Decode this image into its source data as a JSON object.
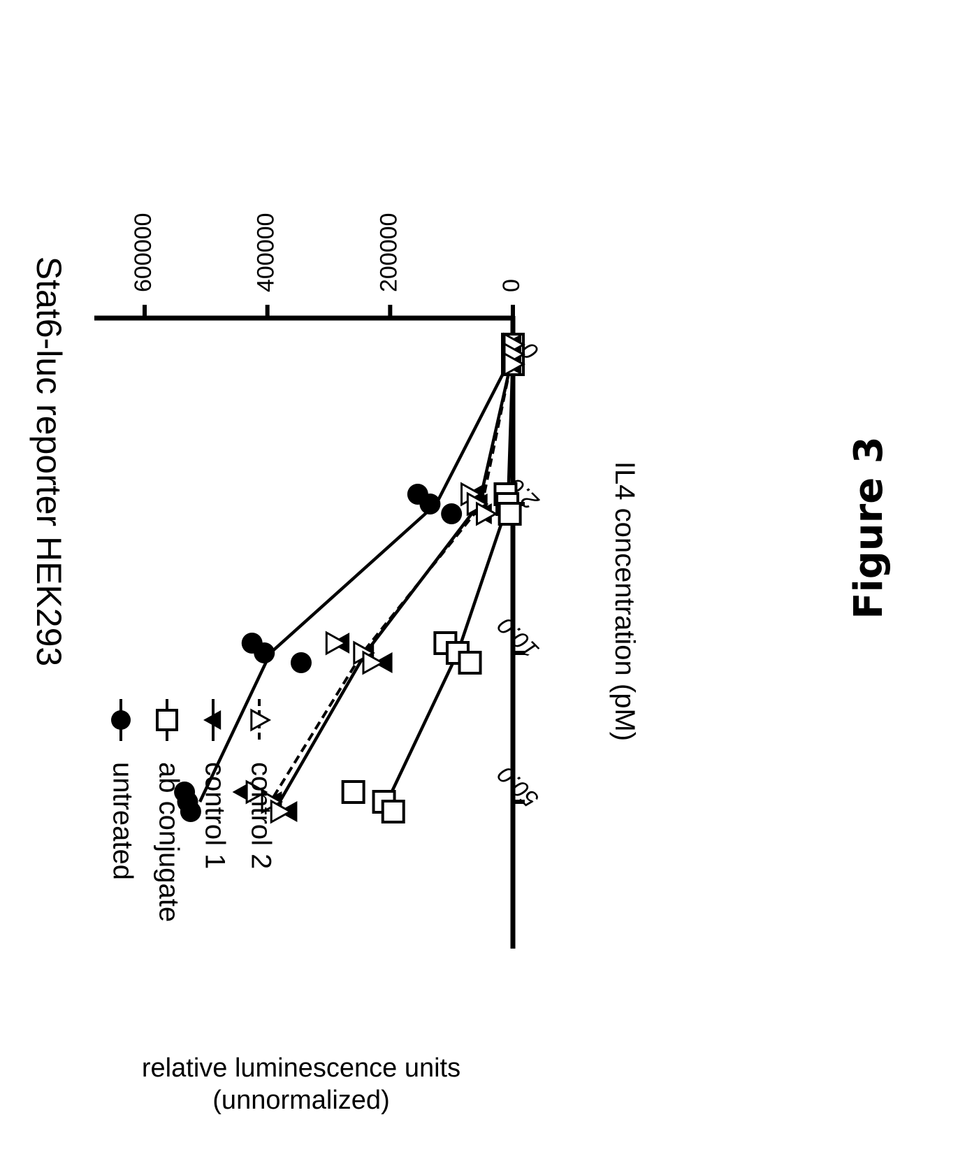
{
  "figure_label": "Figure 3",
  "chart_data": {
    "type": "scatter",
    "title": "Stat6-luc reporter HEK293",
    "xlabel": "IL4 concentration (pM)",
    "ylabel": "relative luminescence units (unnormalized)",
    "ylabel_line1": "relative luminescence units",
    "ylabel_line2": "(unnormalized)",
    "categories": [
      "0",
      "2.0",
      "10.0",
      "50.0"
    ],
    "y_ticks": [
      0,
      200000,
      400000,
      600000
    ],
    "y_tick_labels": [
      "0",
      "200000",
      "400000",
      "600000"
    ],
    "ylim": [
      0,
      620000
    ],
    "grid": false,
    "legend_position": "right",
    "series": [
      {
        "name": "untreated",
        "marker": "circle-filled",
        "line": "solid",
        "means": [
          0,
          125000,
          395000,
          510000
        ],
        "points": [
          [
            0,
            0
          ],
          [
            0,
            0
          ],
          [
            0,
            0
          ],
          [
            2,
            155000
          ],
          [
            2,
            135000
          ],
          [
            2,
            100000
          ],
          [
            10,
            425000
          ],
          [
            10,
            405000
          ],
          [
            10,
            345000
          ],
          [
            50,
            535000
          ],
          [
            50,
            530000
          ],
          [
            50,
            525000
          ]
        ]
      },
      {
        "name": "ab conjugate",
        "marker": "square-open",
        "line": "solid",
        "means": [
          0,
          8000,
          90000,
          205000
        ],
        "points": [
          [
            0,
            0
          ],
          [
            0,
            0
          ],
          [
            0,
            0
          ],
          [
            2,
            12000
          ],
          [
            2,
            9000
          ],
          [
            2,
            5000
          ],
          [
            10,
            110000
          ],
          [
            10,
            90000
          ],
          [
            10,
            70000
          ],
          [
            50,
            260000
          ],
          [
            50,
            210000
          ],
          [
            50,
            195000
          ]
        ]
      },
      {
        "name": "control 1",
        "marker": "triangle-filled",
        "line": "solid",
        "means": [
          0,
          55000,
          240000,
          380000
        ],
        "points": [
          [
            0,
            0
          ],
          [
            0,
            0
          ],
          [
            0,
            0
          ],
          [
            2,
            60000
          ],
          [
            2,
            55000
          ],
          [
            2,
            48000
          ],
          [
            10,
            280000
          ],
          [
            10,
            240000
          ],
          [
            10,
            210000
          ],
          [
            50,
            440000
          ],
          [
            50,
            390000
          ],
          [
            50,
            365000
          ]
        ]
      },
      {
        "name": "control 2",
        "marker": "triangle-down-open",
        "line": "dashed",
        "means": [
          0,
          50000,
          245000,
          395000
        ],
        "points": [
          [
            0,
            0
          ],
          [
            0,
            0
          ],
          [
            0,
            0
          ],
          [
            2,
            70000
          ],
          [
            2,
            60000
          ],
          [
            2,
            45000
          ],
          [
            10,
            290000
          ],
          [
            10,
            245000
          ],
          [
            10,
            230000
          ],
          [
            50,
            420000
          ],
          [
            50,
            395000
          ],
          [
            50,
            380000
          ]
        ]
      }
    ]
  }
}
